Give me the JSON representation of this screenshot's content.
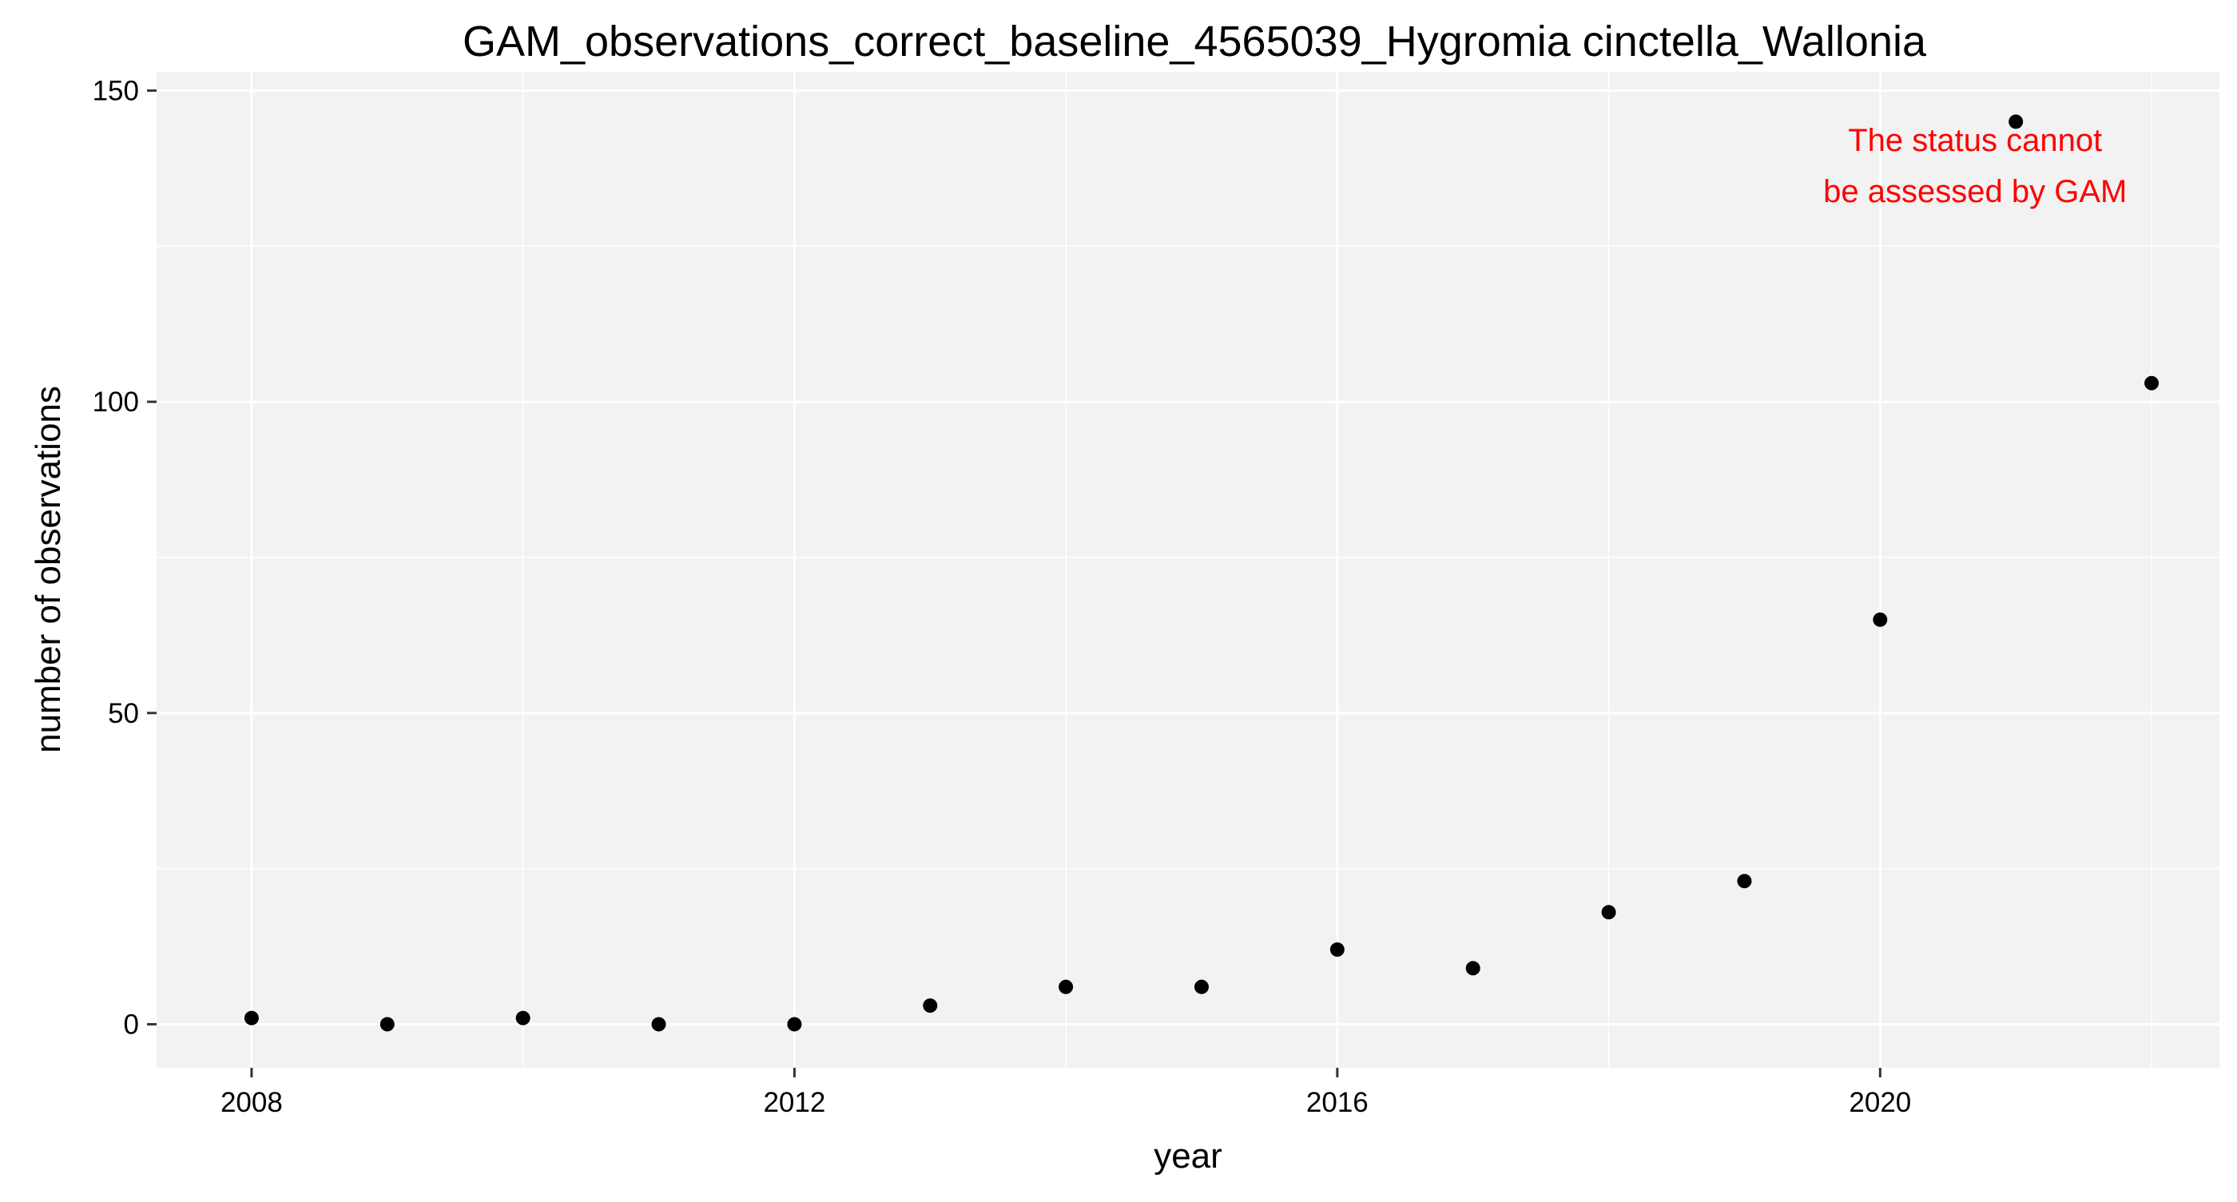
{
  "chart_data": {
    "type": "scatter",
    "title": "GAM_observations_correct_baseline_4565039_Hygromia cinctella_Wallonia",
    "xlabel": "year",
    "ylabel": "number of observations",
    "xlim": [
      2007.3,
      2022.5
    ],
    "ylim": [
      -7,
      153
    ],
    "x_ticks": [
      2008,
      2012,
      2016,
      2020
    ],
    "y_ticks": [
      0,
      50,
      100,
      150
    ],
    "grid": true,
    "annotation": {
      "lines": [
        "The status cannot",
        "be assessed by GAM"
      ],
      "color": "#ff0000",
      "anchor_x": 2020.7,
      "anchor_y": 138
    },
    "point_color": "#000000",
    "panel_background": "#f2f2f2",
    "grid_color": "#ffffff",
    "series": [
      {
        "x": [
          2008,
          2009,
          2010,
          2011,
          2012,
          2013,
          2014,
          2015,
          2016,
          2017,
          2018,
          2019,
          2020,
          2021,
          2022
        ],
        "y": [
          1,
          0,
          1,
          0,
          0,
          3,
          6,
          6,
          12,
          9,
          18,
          23,
          65,
          145,
          103
        ]
      }
    ]
  }
}
